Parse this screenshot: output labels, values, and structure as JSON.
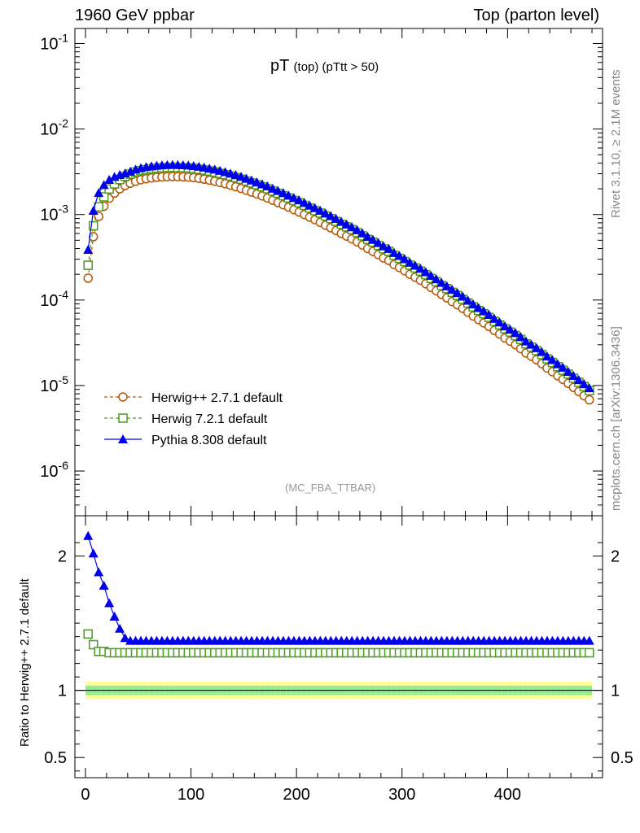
{
  "header": {
    "left": "1960 GeV ppbar",
    "right": "Top (parton level)"
  },
  "title_main": "pT",
  "title_sub": "(top) (pTtt > 50)",
  "watermark": "(MC_FBA_TTBAR)",
  "side_text_top": "Rivet 3.1.10, ≥ 2.1M events",
  "side_text_bottom": "mcplots.cern.ch [arXiv:1306.3436]",
  "ratio_ylabel": "Ratio to Herwig++ 2.7.1 default",
  "colors": {
    "herwigpp": "#b35806",
    "herwig7": "#4a9c1e",
    "pythia": "#0000ee",
    "band_inner": "#90ee90",
    "band_outer": "#ffff99"
  },
  "chart_data": [
    {
      "type": "scatter",
      "panel": "main",
      "yscale": "log",
      "xlim": [
        -10,
        490
      ],
      "ylim": [
        3e-07,
        0.15
      ],
      "ytick_labels": [
        "10^-6",
        "10^-5",
        "10^-4",
        "10^-3",
        "10^-2",
        "10^-1"
      ],
      "xbin_centers": [
        2.5,
        7.5,
        12.5,
        17.5,
        22.5,
        27.5,
        32.5,
        37.5,
        42.5,
        47.5,
        52.5,
        57.5,
        62.5,
        67.5,
        72.5,
        77.5,
        82.5,
        87.5,
        92.5,
        97.5,
        102.5,
        107.5,
        112.5,
        117.5,
        122.5,
        127.5,
        132.5,
        137.5,
        142.5,
        147.5,
        152.5,
        157.5,
        162.5,
        167.5,
        172.5,
        177.5,
        182.5,
        187.5,
        192.5,
        197.5,
        202.5,
        207.5,
        212.5,
        217.5,
        222.5,
        227.5,
        232.5,
        237.5,
        242.5,
        247.5,
        252.5,
        257.5,
        262.5,
        267.5,
        272.5,
        277.5,
        282.5,
        287.5,
        292.5,
        297.5,
        302.5,
        307.5,
        312.5,
        317.5,
        322.5,
        327.5,
        332.5,
        337.5,
        342.5,
        347.5,
        352.5,
        357.5,
        362.5,
        367.5,
        372.5,
        377.5,
        382.5,
        387.5,
        392.5,
        397.5,
        402.5,
        407.5,
        412.5,
        417.5,
        422.5,
        427.5,
        432.5,
        437.5,
        442.5,
        447.5,
        452.5,
        457.5,
        462.5,
        467.5,
        472.5,
        477.5
      ],
      "legend": [
        "Herwig++ 2.7.1 default",
        "Herwig 7.2.1 default",
        "Pythia 8.308 default"
      ],
      "legend_position": "bottom-left",
      "series": [
        {
          "name": "Herwig++ 2.7.1 default",
          "marker": "open-circle",
          "values": [
            0.00018,
            0.00055,
            0.00095,
            0.00125,
            0.00155,
            0.00178,
            0.002,
            0.00218,
            0.00232,
            0.00245,
            0.00255,
            0.00262,
            0.00268,
            0.00272,
            0.00275,
            0.00277,
            0.00278,
            0.00277,
            0.00276,
            0.00274,
            0.0027,
            0.00265,
            0.00259,
            0.00252,
            0.00245,
            0.00237,
            0.00229,
            0.0022,
            0.00211,
            0.00202,
            0.00192,
            0.00183,
            0.00174,
            0.00165,
            0.00156,
            0.00147,
            0.00138,
            0.0013,
            0.00122,
            0.00114,
            0.00107,
            0.001,
            0.00093,
            0.00087,
            0.00081,
            0.00075,
            0.0007,
            0.00065,
            0.0006,
            0.00056,
            0.00052,
            0.00048,
            0.00044,
            0.0004,
            0.00037,
            0.00034,
            0.00031,
            0.00029,
            0.00026,
            0.00024,
            0.00022,
            0.0002,
            0.000185,
            0.00017,
            0.000155,
            0.00014,
            0.000128,
            0.000116,
            0.000106,
            9.6e-05,
            8.8e-05,
            8e-05,
            7.2e-05,
            6.5e-05,
            5.9e-05,
            5.4e-05,
            4.9e-05,
            4.4e-05,
            4e-05,
            3.6e-05,
            3.3e-05,
            3e-05,
            2.7e-05,
            2.4e-05,
            2.2e-05,
            2e-05,
            1.8e-05,
            1.6e-05,
            1.45e-05,
            1.3e-05,
            1.18e-05,
            1.06e-05,
            9.5e-06,
            8.5e-06,
            7.6e-06,
            6.8e-06
          ]
        },
        {
          "name": "Herwig 7.2.1 default",
          "marker": "open-square",
          "values": [
            0.000255,
            0.000738,
            0.00123,
            0.00161,
            0.00199,
            0.00228,
            0.00256,
            0.00279,
            0.00297,
            0.00314,
            0.00326,
            0.00335,
            0.00343,
            0.00348,
            0.00352,
            0.00355,
            0.00356,
            0.00355,
            0.00353,
            0.00351,
            0.00346,
            0.00339,
            0.00332,
            0.00323,
            0.00314,
            0.00303,
            0.00293,
            0.00282,
            0.0027,
            0.00259,
            0.00246,
            0.00234,
            0.00223,
            0.00211,
            0.002,
            0.00188,
            0.00177,
            0.00166,
            0.00156,
            0.00146,
            0.00137,
            0.00128,
            0.00119,
            0.00111,
            0.00104,
            0.00096,
            0.000896,
            0.000832,
            0.000768,
            0.000717,
            0.000666,
            0.000614,
            0.000563,
            0.000512,
            0.000474,
            0.000435,
            0.000397,
            0.000371,
            0.000333,
            0.000307,
            0.000282,
            0.000256,
            0.000237,
            0.000218,
            0.000198,
            0.000179,
            0.000164,
            0.000148,
            0.000136,
            0.000123,
            0.000113,
            0.000102,
            9.22e-05,
            8.32e-05,
            7.55e-05,
            6.91e-05,
            6.27e-05,
            5.63e-05,
            5.12e-05,
            4.61e-05,
            4.22e-05,
            3.84e-05,
            3.46e-05,
            3.07e-05,
            2.82e-05,
            2.56e-05,
            2.3e-05,
            2.05e-05,
            1.86e-05,
            1.66e-05,
            1.51e-05,
            1.36e-05,
            1.22e-05,
            1.09e-05,
            9.73e-06,
            8.7e-06
          ]
        },
        {
          "name": "Pythia 8.308 default",
          "marker": "filled-triangle",
          "values": [
            0.000387,
            0.00111,
            0.00179,
            0.00222,
            0.00255,
            0.00276,
            0.00291,
            0.00303,
            0.00318,
            0.00336,
            0.00349,
            0.0036,
            0.00367,
            0.00373,
            0.00377,
            0.0038,
            0.00381,
            0.0038,
            0.00378,
            0.00375,
            0.0037,
            0.00363,
            0.00355,
            0.00345,
            0.00336,
            0.00325,
            0.00314,
            0.00301,
            0.00289,
            0.00277,
            0.00263,
            0.00251,
            0.00238,
            0.00226,
            0.00214,
            0.00201,
            0.00189,
            0.00178,
            0.00167,
            0.00156,
            0.00147,
            0.00137,
            0.00127,
            0.00119,
            0.00111,
            0.00103,
            0.000959,
            0.00089,
            0.000822,
            0.000767,
            0.000712,
            0.000658,
            0.000603,
            0.000548,
            0.000507,
            0.000466,
            0.000425,
            0.000397,
            0.000356,
            0.000329,
            0.000301,
            0.000274,
            0.000253,
            0.000233,
            0.000212,
            0.000192,
            0.000175,
            0.000159,
            0.000145,
            0.000132,
            0.000121,
            0.00011,
            9.86e-05,
            8.9e-05,
            8.08e-05,
            7.4e-05,
            6.71e-05,
            6.03e-05,
            5.48e-05,
            4.93e-05,
            4.52e-05,
            4.11e-05,
            3.7e-05,
            3.29e-05,
            3.01e-05,
            2.74e-05,
            2.47e-05,
            2.19e-05,
            1.99e-05,
            1.78e-05,
            1.62e-05,
            1.45e-05,
            1.3e-05,
            1.16e-05,
            1.04e-05,
            9.32e-06
          ]
        }
      ]
    },
    {
      "type": "scatter",
      "panel": "ratio",
      "xlim": [
        -10,
        490
      ],
      "ylim": [
        0.35,
        2.3
      ],
      "xticks": [
        0,
        100,
        200,
        300,
        400
      ],
      "yticks": [
        0.5,
        1,
        2
      ],
      "reference_line": 1,
      "xbin_centers": [
        2.5,
        7.5,
        12.5,
        17.5,
        22.5,
        27.5,
        32.5,
        37.5,
        42.5,
        47.5,
        52.5,
        57.5,
        62.5,
        67.5,
        72.5,
        77.5,
        82.5,
        87.5,
        92.5,
        97.5,
        102.5,
        107.5,
        112.5,
        117.5,
        122.5,
        127.5,
        132.5,
        137.5,
        142.5,
        147.5,
        152.5,
        157.5,
        162.5,
        167.5,
        172.5,
        177.5,
        182.5,
        187.5,
        192.5,
        197.5,
        202.5,
        207.5,
        212.5,
        217.5,
        222.5,
        227.5,
        232.5,
        237.5,
        242.5,
        247.5,
        252.5,
        257.5,
        262.5,
        267.5,
        272.5,
        277.5,
        282.5,
        287.5,
        292.5,
        297.5,
        302.5,
        307.5,
        312.5,
        317.5,
        322.5,
        327.5,
        332.5,
        337.5,
        342.5,
        347.5,
        352.5,
        357.5,
        362.5,
        367.5,
        372.5,
        377.5,
        382.5,
        387.5,
        392.5,
        397.5,
        402.5,
        407.5,
        412.5,
        417.5,
        422.5,
        427.5,
        432.5,
        437.5,
        442.5,
        447.5,
        452.5,
        457.5,
        462.5,
        467.5,
        472.5,
        477.5
      ],
      "band_inner_halfwidth": [
        0.035,
        0.035,
        0.035,
        0.035,
        0.035,
        0.035,
        0.035,
        0.035,
        0.035,
        0.035,
        0.035,
        0.035,
        0.035,
        0.035,
        0.035,
        0.035,
        0.035,
        0.035,
        0.035,
        0.035,
        0.035,
        0.035,
        0.035,
        0.035,
        0.035,
        0.035,
        0.035,
        0.035,
        0.035,
        0.035,
        0.035,
        0.035,
        0.035,
        0.035,
        0.035,
        0.035,
        0.035,
        0.035,
        0.035,
        0.035,
        0.035,
        0.035,
        0.035,
        0.035,
        0.035,
        0.035,
        0.035,
        0.035,
        0.035,
        0.035,
        0.035,
        0.035,
        0.035,
        0.035,
        0.035,
        0.035,
        0.035,
        0.035,
        0.035,
        0.035,
        0.035,
        0.035,
        0.035,
        0.035,
        0.035,
        0.035,
        0.035,
        0.035,
        0.035,
        0.035,
        0.035,
        0.035,
        0.035,
        0.035,
        0.035,
        0.035,
        0.035,
        0.035,
        0.035,
        0.035,
        0.035,
        0.035,
        0.035,
        0.035,
        0.035,
        0.035,
        0.035,
        0.035,
        0.035,
        0.035,
        0.035,
        0.035,
        0.035,
        0.035,
        0.035,
        0.035
      ],
      "band_outer_halfwidth": [
        0.065,
        0.065,
        0.065,
        0.065,
        0.065,
        0.065,
        0.065,
        0.065,
        0.065,
        0.065,
        0.065,
        0.065,
        0.065,
        0.065,
        0.065,
        0.065,
        0.065,
        0.065,
        0.065,
        0.065,
        0.065,
        0.065,
        0.065,
        0.065,
        0.065,
        0.065,
        0.065,
        0.065,
        0.065,
        0.065,
        0.065,
        0.065,
        0.065,
        0.065,
        0.065,
        0.065,
        0.065,
        0.065,
        0.065,
        0.065,
        0.065,
        0.065,
        0.065,
        0.065,
        0.065,
        0.065,
        0.065,
        0.065,
        0.065,
        0.065,
        0.065,
        0.065,
        0.065,
        0.065,
        0.065,
        0.065,
        0.065,
        0.065,
        0.065,
        0.065,
        0.065,
        0.065,
        0.065,
        0.065,
        0.065,
        0.065,
        0.065,
        0.065,
        0.065,
        0.065,
        0.065,
        0.065,
        0.065,
        0.065,
        0.065,
        0.065,
        0.065,
        0.065,
        0.065,
        0.065,
        0.065,
        0.065,
        0.065,
        0.065,
        0.065,
        0.065,
        0.065,
        0.065,
        0.065,
        0.065,
        0.065,
        0.065,
        0.065,
        0.065,
        0.065,
        0.065
      ],
      "series": [
        {
          "name": "Herwig 7.2.1 default",
          "values": [
            1.42,
            1.34,
            1.29,
            1.29,
            1.28,
            1.28,
            1.28,
            1.28,
            1.28,
            1.28,
            1.28,
            1.28,
            1.28,
            1.28,
            1.28,
            1.28,
            1.28,
            1.28,
            1.28,
            1.28,
            1.28,
            1.28,
            1.28,
            1.28,
            1.28,
            1.28,
            1.28,
            1.28,
            1.28,
            1.28,
            1.28,
            1.28,
            1.28,
            1.28,
            1.28,
            1.28,
            1.28,
            1.28,
            1.28,
            1.28,
            1.28,
            1.28,
            1.28,
            1.28,
            1.28,
            1.28,
            1.28,
            1.28,
            1.28,
            1.28,
            1.28,
            1.28,
            1.28,
            1.28,
            1.28,
            1.28,
            1.28,
            1.28,
            1.28,
            1.28,
            1.28,
            1.28,
            1.28,
            1.28,
            1.28,
            1.28,
            1.28,
            1.28,
            1.28,
            1.28,
            1.28,
            1.28,
            1.28,
            1.28,
            1.28,
            1.28,
            1.28,
            1.28,
            1.28,
            1.28,
            1.28,
            1.28,
            1.28,
            1.28,
            1.28,
            1.28,
            1.28,
            1.28,
            1.28,
            1.28,
            1.28,
            1.28,
            1.28,
            1.28,
            1.28,
            1.28
          ]
        },
        {
          "name": "Pythia 8.308 default",
          "values": [
            2.15,
            2.02,
            1.88,
            1.78,
            1.65,
            1.55,
            1.46,
            1.39,
            1.37,
            1.37,
            1.37,
            1.37,
            1.37,
            1.37,
            1.37,
            1.37,
            1.37,
            1.37,
            1.37,
            1.37,
            1.37,
            1.37,
            1.37,
            1.37,
            1.37,
            1.37,
            1.37,
            1.37,
            1.37,
            1.37,
            1.37,
            1.37,
            1.37,
            1.37,
            1.37,
            1.37,
            1.37,
            1.37,
            1.37,
            1.37,
            1.37,
            1.37,
            1.37,
            1.37,
            1.37,
            1.37,
            1.37,
            1.37,
            1.37,
            1.37,
            1.37,
            1.37,
            1.37,
            1.37,
            1.37,
            1.37,
            1.37,
            1.37,
            1.37,
            1.37,
            1.37,
            1.37,
            1.37,
            1.37,
            1.37,
            1.37,
            1.37,
            1.37,
            1.37,
            1.37,
            1.37,
            1.37,
            1.37,
            1.37,
            1.37,
            1.37,
            1.37,
            1.37,
            1.37,
            1.37,
            1.37,
            1.37,
            1.37,
            1.37,
            1.37,
            1.37,
            1.37,
            1.37,
            1.37,
            1.37,
            1.37,
            1.37,
            1.37,
            1.37,
            1.37,
            1.37
          ]
        }
      ]
    }
  ]
}
